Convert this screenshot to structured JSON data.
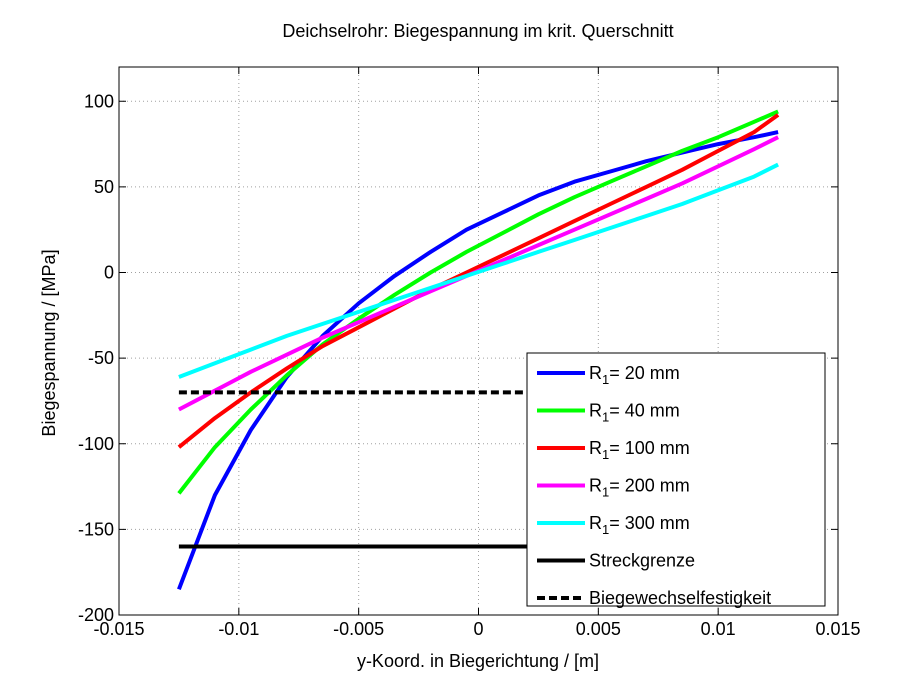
{
  "chart_data": {
    "type": "line",
    "title": "Deichselrohr: Biegespannung im krit. Querschnitt",
    "xlabel": "y-Koord. in Biegerichtung / [m]",
    "ylabel": "Biegespannung / [MPa]",
    "xlim": [
      -0.015,
      0.015
    ],
    "ylim": [
      -200,
      120
    ],
    "xticks": [
      -0.015,
      -0.01,
      -0.005,
      0,
      0.005,
      0.01,
      0.015
    ],
    "xtick_labels": [
      "-0.015",
      "-0.01",
      "-0.005",
      "0",
      "0.005",
      "0.01",
      "0.015"
    ],
    "yticks": [
      -200,
      -150,
      -100,
      -50,
      0,
      50,
      100
    ],
    "ytick_labels": [
      "-200",
      "-150",
      "-100",
      "-50",
      "0",
      "50",
      "100"
    ],
    "grid": true,
    "legend_position": "bottom-right",
    "series": [
      {
        "name": "R",
        "name_sub": "1",
        "name_rest": "=  20 mm",
        "color": "#0000ff",
        "dashed": false,
        "x": [
          -0.0125,
          -0.011,
          -0.0095,
          -0.008,
          -0.0065,
          -0.005,
          -0.0035,
          -0.002,
          -0.0005,
          0.001,
          0.0025,
          0.004,
          0.0055,
          0.007,
          0.0085,
          0.01,
          0.0115,
          0.0125
        ],
        "y": [
          -185,
          -130,
          -92,
          -61,
          -37,
          -18,
          -2,
          12,
          25,
          35,
          45,
          53,
          59,
          65,
          70,
          75,
          79,
          82
        ]
      },
      {
        "name": "R",
        "name_sub": "1",
        "name_rest": "=  40 mm",
        "color": "#00ff00",
        "dashed": false,
        "x": [
          -0.0125,
          -0.011,
          -0.0095,
          -0.008,
          -0.0065,
          -0.005,
          -0.0035,
          -0.002,
          -0.0005,
          0.001,
          0.0025,
          0.004,
          0.0055,
          0.007,
          0.0085,
          0.01,
          0.0115,
          0.0125
        ],
        "y": [
          -129,
          -102,
          -80,
          -60,
          -42,
          -27,
          -13,
          0,
          12,
          23,
          34,
          44,
          53,
          62,
          71,
          79,
          88,
          94
        ]
      },
      {
        "name": "R",
        "name_sub": "1",
        "name_rest": "= 100 mm",
        "color": "#ff0000",
        "dashed": false,
        "x": [
          -0.0125,
          -0.011,
          -0.0095,
          -0.008,
          -0.0065,
          -0.005,
          -0.0035,
          -0.002,
          -0.0005,
          0.001,
          0.0025,
          0.004,
          0.0055,
          0.007,
          0.0085,
          0.01,
          0.0115,
          0.0125
        ],
        "y": [
          -102,
          -85,
          -70,
          -56,
          -43,
          -32,
          -21,
          -10,
          0,
          10,
          20,
          30,
          40,
          50,
          60,
          71,
          82,
          92
        ]
      },
      {
        "name": "R",
        "name_sub": "1",
        "name_rest": "= 200 mm",
        "color": "#ff00ff",
        "dashed": false,
        "x": [
          -0.0125,
          -0.011,
          -0.0095,
          -0.008,
          -0.0065,
          -0.005,
          -0.0035,
          -0.002,
          -0.0005,
          0.001,
          0.0025,
          0.004,
          0.0055,
          0.007,
          0.0085,
          0.01,
          0.0115,
          0.0125
        ],
        "y": [
          -80,
          -69,
          -58,
          -48,
          -38,
          -29,
          -20,
          -11,
          -2,
          7,
          16,
          25,
          34,
          43,
          52,
          62,
          72,
          79
        ]
      },
      {
        "name": "R",
        "name_sub": "1",
        "name_rest": "= 300 mm",
        "color": "#00ffff",
        "dashed": false,
        "x": [
          -0.0125,
          -0.011,
          -0.0095,
          -0.008,
          -0.0065,
          -0.005,
          -0.0035,
          -0.002,
          -0.0005,
          0.001,
          0.0025,
          0.004,
          0.0055,
          0.007,
          0.0085,
          0.01,
          0.0115,
          0.0125
        ],
        "y": [
          -61,
          -53,
          -45,
          -37,
          -30,
          -23,
          -16,
          -9,
          -2,
          5,
          12,
          19,
          26,
          33,
          40,
          48,
          56,
          63
        ]
      },
      {
        "name": "Streckgrenze",
        "color": "#000000",
        "dashed": false,
        "x": [
          -0.0125,
          0.0125
        ],
        "y": [
          -160,
          -160
        ]
      },
      {
        "name": "Biegewechselfestigkeit",
        "color": "#000000",
        "dashed": true,
        "x": [
          -0.0125,
          0.0125
        ],
        "y": [
          -70,
          -70
        ]
      }
    ]
  }
}
